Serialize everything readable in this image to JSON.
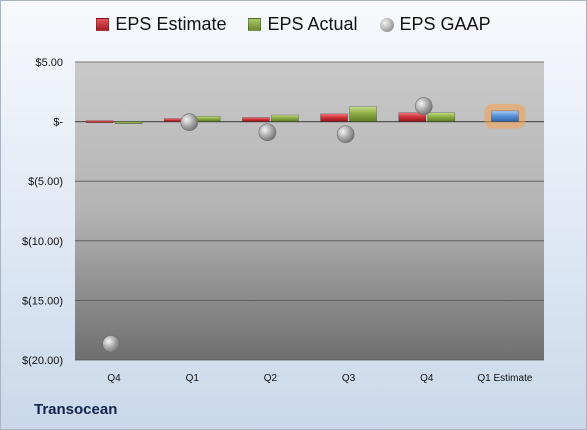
{
  "chart_data": {
    "type": "bar",
    "categories": [
      "Q4",
      "Q1",
      "Q2",
      "Q3",
      "Q4",
      "Q1 Estimate"
    ],
    "series": [
      {
        "name": "EPS Estimate",
        "values": [
          0.08,
          0.25,
          0.35,
          0.65,
          0.75,
          null
        ],
        "color": "#c0282e"
      },
      {
        "name": "EPS Actual",
        "values": [
          -0.1,
          0.45,
          0.55,
          1.25,
          0.75,
          0.9
        ],
        "color": "#7f9f3a"
      },
      {
        "name": "EPS GAAP",
        "type": "scatter",
        "values": [
          -18.65,
          -0.05,
          -0.9,
          -1.05,
          1.3,
          null
        ],
        "color": "#9a9a9a"
      }
    ],
    "highlight": {
      "category": "Q1 Estimate",
      "series": "EPS Actual",
      "color": "#5b93d6",
      "glow": "#f5a04a"
    },
    "yticks": [
      5,
      0,
      -5,
      -10,
      -15,
      -20
    ],
    "ytick_labels": [
      "$5.00",
      "$-",
      "$(5.00)",
      "$(10.00)",
      "$(15.00)",
      "$(20.00)"
    ],
    "ylim": [
      -20,
      5
    ],
    "grid": true,
    "legend_position": "top",
    "company": "Transocean"
  }
}
